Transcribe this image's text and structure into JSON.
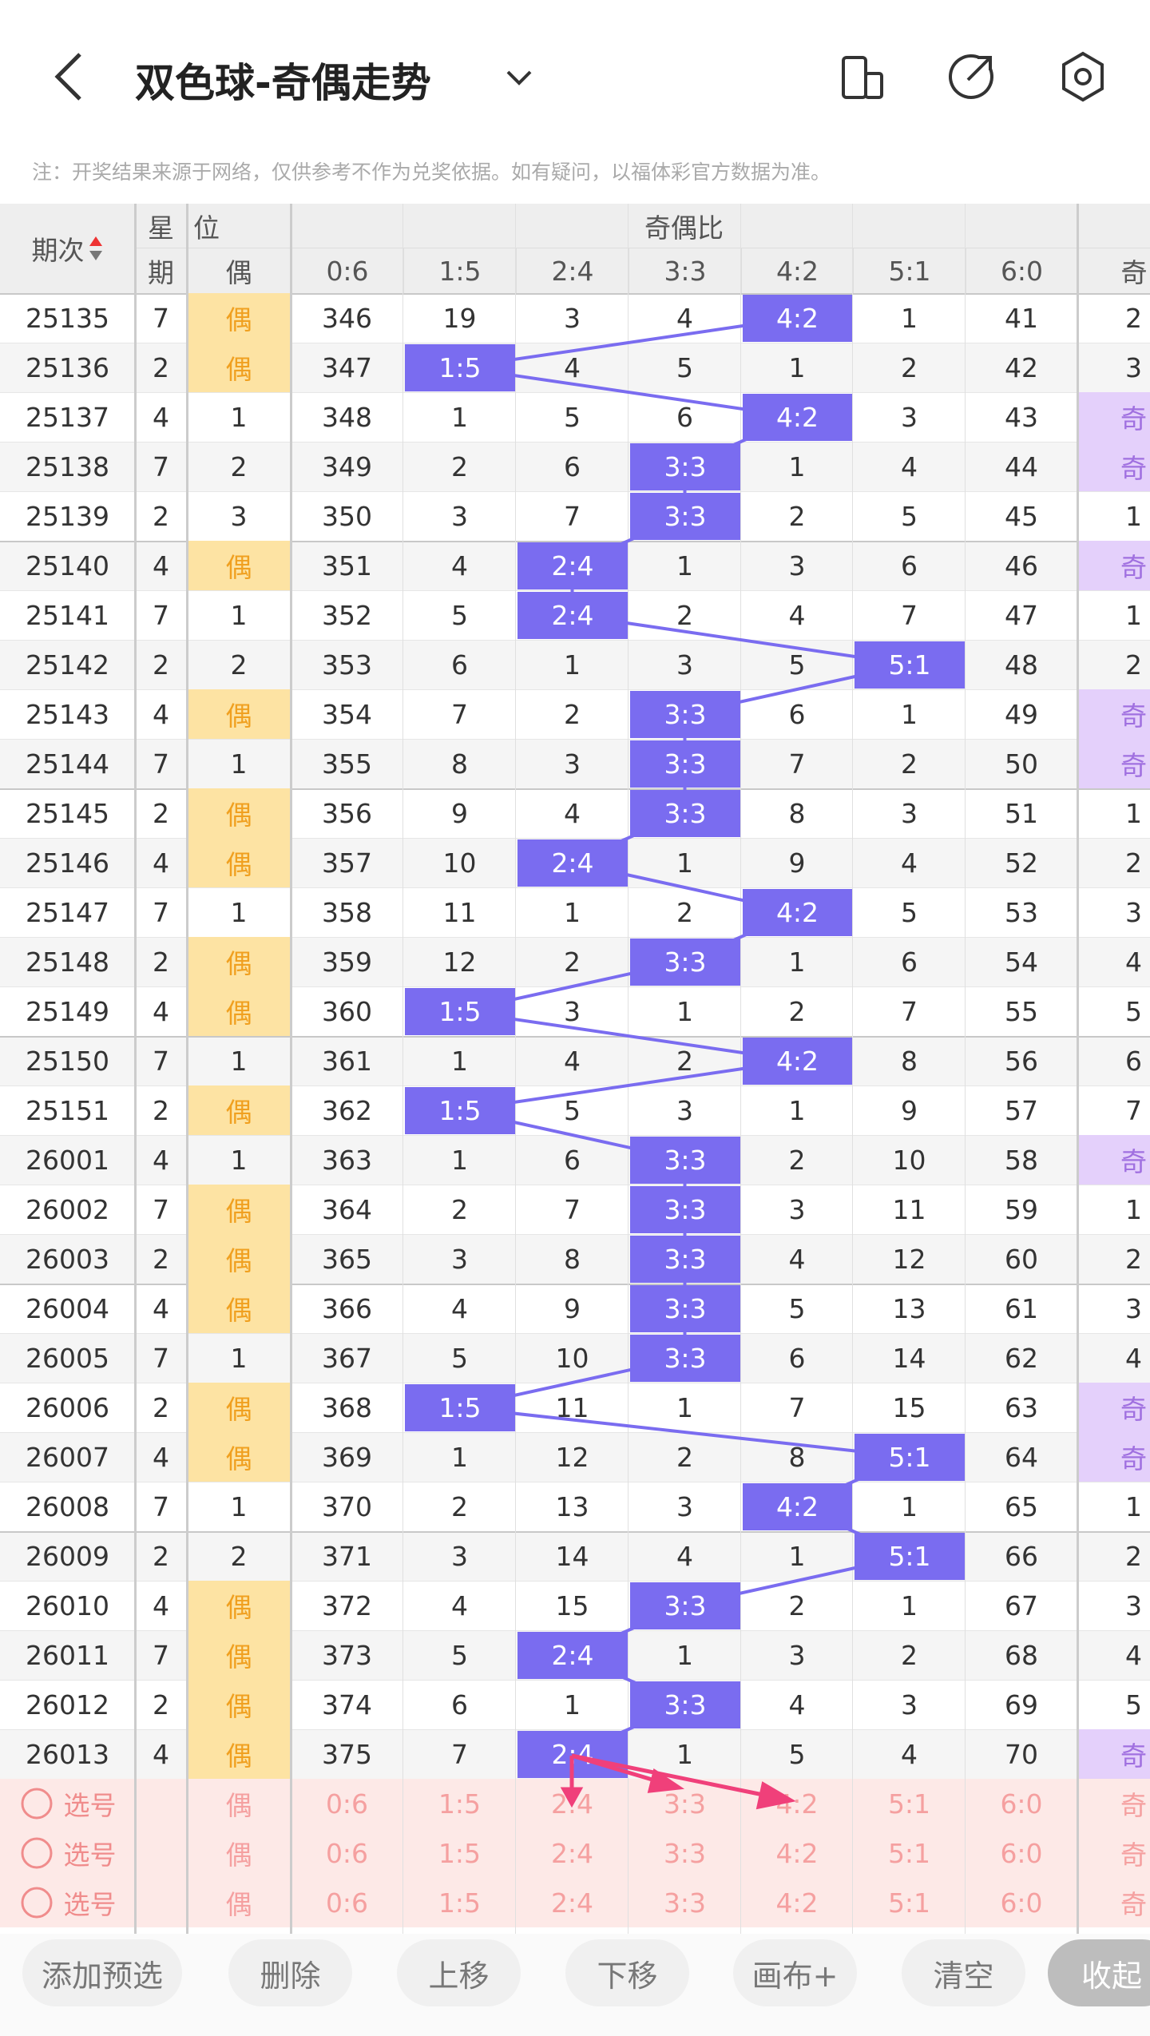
{
  "header": {
    "title": "双色球-奇偶走势"
  },
  "notice": "注：开奖结果来源于网络，仅供参考不作为兑奖依据。如有疑问，以福体彩官方数据为准。",
  "table": {
    "head_top": [
      "期次",
      "星",
      "位",
      "奇偶比"
    ],
    "head_bottom": [
      "期",
      "偶",
      "0:6",
      "1:5",
      "2:4",
      "3:3",
      "4:2",
      "5:1",
      "6:0",
      "奇"
    ],
    "rows": [
      [
        25135,
        7,
        "偶",
        346,
        19,
        3,
        4,
        "4:2",
        1,
        41,
        2
      ],
      [
        25136,
        2,
        "偶",
        347,
        "1:5",
        4,
        5,
        1,
        2,
        42,
        3
      ],
      [
        25137,
        4,
        1,
        348,
        1,
        5,
        6,
        "4:2",
        3,
        43,
        "奇"
      ],
      [
        25138,
        7,
        2,
        349,
        2,
        6,
        "3:3",
        1,
        4,
        44,
        "奇"
      ],
      [
        25139,
        2,
        3,
        350,
        3,
        7,
        "3:3",
        2,
        5,
        45,
        1
      ],
      [
        25140,
        4,
        "偶",
        351,
        4,
        "2:4",
        1,
        3,
        6,
        46,
        "奇"
      ],
      [
        25141,
        7,
        1,
        352,
        5,
        "2:4",
        2,
        4,
        7,
        47,
        1
      ],
      [
        25142,
        2,
        2,
        353,
        6,
        1,
        3,
        5,
        "5:1",
        48,
        2
      ],
      [
        25143,
        4,
        "偶",
        354,
        7,
        2,
        "3:3",
        6,
        1,
        49,
        "奇"
      ],
      [
        25144,
        7,
        1,
        355,
        8,
        3,
        "3:3",
        7,
        2,
        50,
        "奇"
      ],
      [
        25145,
        2,
        "偶",
        356,
        9,
        4,
        "3:3",
        8,
        3,
        51,
        1
      ],
      [
        25146,
        4,
        "偶",
        357,
        10,
        "2:4",
        1,
        9,
        4,
        52,
        2
      ],
      [
        25147,
        7,
        1,
        358,
        11,
        1,
        2,
        "4:2",
        5,
        53,
        3
      ],
      [
        25148,
        2,
        "偶",
        359,
        12,
        2,
        "3:3",
        1,
        6,
        54,
        4
      ],
      [
        25149,
        4,
        "偶",
        360,
        "1:5",
        3,
        1,
        2,
        7,
        55,
        5
      ],
      [
        25150,
        7,
        1,
        361,
        1,
        4,
        2,
        "4:2",
        8,
        56,
        6
      ],
      [
        25151,
        2,
        "偶",
        362,
        "1:5",
        5,
        3,
        1,
        9,
        57,
        7
      ],
      [
        26001,
        4,
        1,
        363,
        1,
        6,
        "3:3",
        2,
        10,
        58,
        "奇"
      ],
      [
        26002,
        7,
        "偶",
        364,
        2,
        7,
        "3:3",
        3,
        11,
        59,
        1
      ],
      [
        26003,
        2,
        "偶",
        365,
        3,
        8,
        "3:3",
        4,
        12,
        60,
        2
      ],
      [
        26004,
        4,
        "偶",
        366,
        4,
        9,
        "3:3",
        5,
        13,
        61,
        3
      ],
      [
        26005,
        7,
        1,
        367,
        5,
        10,
        "3:3",
        6,
        14,
        62,
        4
      ],
      [
        26006,
        2,
        "偶",
        368,
        "1:5",
        11,
        1,
        7,
        15,
        63,
        "奇"
      ],
      [
        26007,
        4,
        "偶",
        369,
        1,
        12,
        2,
        8,
        "5:1",
        64,
        "奇"
      ],
      [
        26008,
        7,
        1,
        370,
        2,
        13,
        3,
        "4:2",
        1,
        65,
        1
      ],
      [
        26009,
        2,
        2,
        371,
        3,
        14,
        4,
        1,
        "5:1",
        66,
        2
      ],
      [
        26010,
        4,
        "偶",
        372,
        4,
        15,
        "3:3",
        2,
        1,
        67,
        3
      ],
      [
        26011,
        7,
        "偶",
        373,
        5,
        "2:4",
        1,
        3,
        2,
        68,
        4
      ],
      [
        26012,
        2,
        "偶",
        374,
        6,
        1,
        "3:3",
        4,
        3,
        69,
        5
      ],
      [
        26013,
        4,
        "偶",
        375,
        7,
        "2:4",
        1,
        5,
        4,
        70,
        "奇"
      ]
    ]
  },
  "select_rows": [
    {
      "label": "选号",
      "cells": [
        "偶",
        "0:6",
        "1:5",
        "2:4",
        "3:3",
        "4:2",
        "5:1",
        "6:0",
        "奇"
      ]
    },
    {
      "label": "选号",
      "cells": [
        "偶",
        "0:6",
        "1:5",
        "2:4",
        "3:3",
        "4:2",
        "5:1",
        "6:0",
        "奇"
      ]
    },
    {
      "label": "选号",
      "cells": [
        "偶",
        "0:6",
        "1:5",
        "2:4",
        "3:3",
        "4:2",
        "5:1",
        "6:0",
        "奇"
      ]
    }
  ],
  "buttons": [
    "添加预选",
    "删除",
    "上移",
    "下移",
    "画布+",
    "清空",
    "收起"
  ]
}
